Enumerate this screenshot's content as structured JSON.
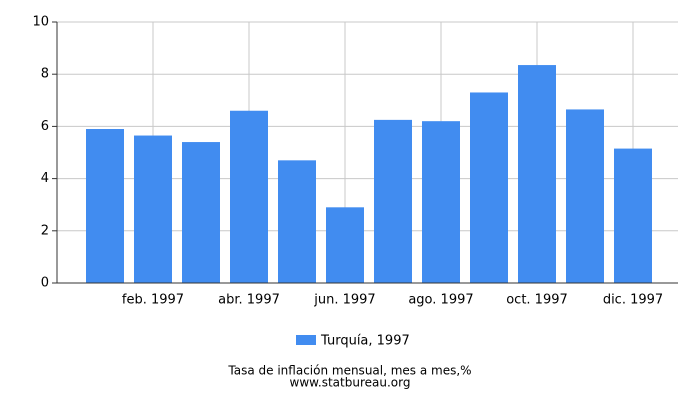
{
  "chart_data": {
    "type": "bar",
    "title": "Tasa de inflación mensual, mes a mes,%",
    "subtitle": "www.statbureau.org",
    "categories": [
      null,
      "feb. 1997",
      null,
      "abr. 1997",
      null,
      "jun. 1997",
      null,
      "ago. 1997",
      null,
      "oct. 1997",
      null,
      "dic. 1997"
    ],
    "series": [
      {
        "name": "Turquía, 1997",
        "color": "#418cf0",
        "values": [
          5.9,
          5.65,
          5.4,
          6.6,
          4.7,
          2.9,
          6.25,
          6.2,
          7.3,
          8.35,
          6.65,
          5.15
        ]
      }
    ],
    "ylim": [
      0,
      10
    ],
    "yticks": [
      0,
      2,
      4,
      6,
      8,
      10
    ],
    "grid": true,
    "legend": "bottom"
  }
}
